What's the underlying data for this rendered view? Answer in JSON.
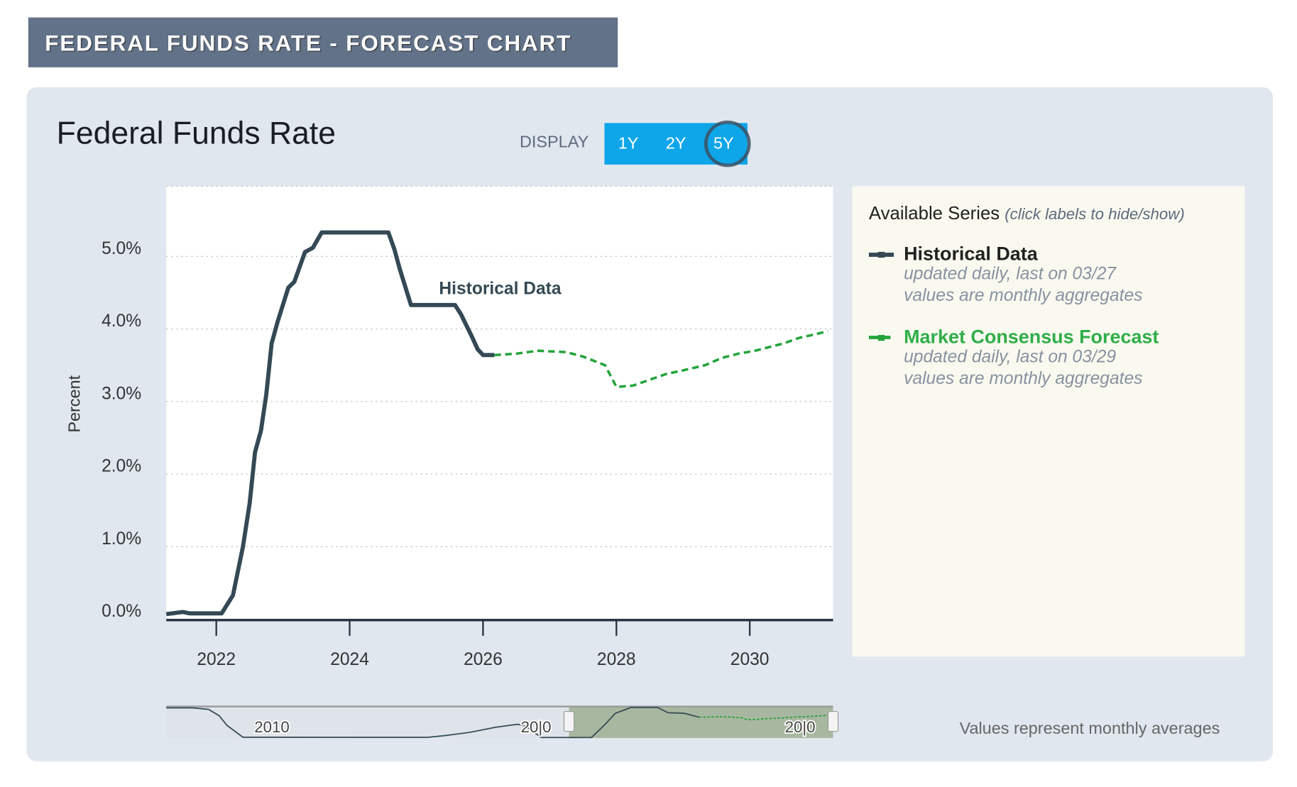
{
  "banner": "FEDERAL FUNDS RATE - FORECAST CHART",
  "title": "Federal Funds Rate",
  "display": {
    "label": "DISPLAY",
    "options": [
      "1Y",
      "2Y",
      "5Y"
    ],
    "selected": "5Y"
  },
  "legend": {
    "heading": "Available Series",
    "hint": "(click labels to hide/show)",
    "items": [
      {
        "name": "Historical Data",
        "color": "#344955",
        "sub1": "updated daily, last on 03/27",
        "sub2": "values are monthly aggregates"
      },
      {
        "name": "Market Consensus Forecast",
        "color": "#22a33a",
        "sub1": "updated daily, last on 03/29",
        "sub2": "values are monthly aggregates"
      }
    ]
  },
  "footnote": "Values represent monthly averages",
  "chart_data": {
    "type": "line",
    "title": "Federal Funds Rate",
    "ylabel": "Percent",
    "xlabel": "",
    "xlim": [
      2021.25,
      2031.25
    ],
    "ylim": [
      0,
      5.9
    ],
    "yticks": [
      "0.0%",
      "1.0%",
      "2.0%",
      "3.0%",
      "4.0%",
      "5.0%"
    ],
    "ytick_values": [
      0,
      1,
      2,
      3,
      4,
      5
    ],
    "xticks": [
      "2022",
      "2024",
      "2026",
      "2028",
      "2030"
    ],
    "xtick_values": [
      2022,
      2024,
      2026,
      2028,
      2030
    ],
    "grid": true,
    "annotation": "Historical Data",
    "series": [
      {
        "name": "Historical Data",
        "style": "solid",
        "color": "#344955",
        "x": [
          2021.25,
          2021.5,
          2021.6,
          2022.0,
          2022.08,
          2022.25,
          2022.4,
          2022.5,
          2022.58,
          2022.67,
          2022.75,
          2022.83,
          2022.92,
          2023.08,
          2023.17,
          2023.33,
          2023.45,
          2023.58,
          2024.58,
          2024.67,
          2024.75,
          2024.92,
          2025.58,
          2025.67,
          2025.83,
          2025.92,
          2026.0,
          2026.17
        ],
        "y": [
          0.07,
          0.1,
          0.08,
          0.08,
          0.08,
          0.33,
          1.0,
          1.6,
          2.3,
          2.6,
          3.1,
          3.8,
          4.1,
          4.57,
          4.65,
          5.06,
          5.12,
          5.33,
          5.33,
          5.1,
          4.83,
          4.33,
          4.33,
          4.2,
          3.9,
          3.72,
          3.64,
          3.64
        ]
      },
      {
        "name": "Market Consensus Forecast",
        "style": "dashed",
        "color": "#22a33a",
        "x": [
          2026.17,
          2026.5,
          2026.83,
          2027.25,
          2027.5,
          2027.83,
          2028.0,
          2028.25,
          2028.5,
          2028.75,
          2029.0,
          2029.33,
          2029.58,
          2029.83,
          2030.08,
          2030.5,
          2030.75,
          2031.0,
          2031.17
        ],
        "y": [
          3.64,
          3.66,
          3.7,
          3.68,
          3.62,
          3.5,
          3.2,
          3.22,
          3.3,
          3.38,
          3.43,
          3.5,
          3.6,
          3.66,
          3.7,
          3.8,
          3.88,
          3.93,
          3.97
        ]
      }
    ],
    "navigator": {
      "labels": [
        "2010",
        "20|0",
        "20|0"
      ],
      "label_years": [
        2010,
        2020,
        2030
      ],
      "xlim": [
        2006.0,
        2031.25
      ],
      "selection": [
        2021.25,
        2031.25
      ],
      "x": [
        2006.0,
        2007.0,
        2007.6,
        2008.0,
        2008.3,
        2008.9,
        2015.9,
        2016.5,
        2017.5,
        2018.5,
        2019.3,
        2019.6,
        2020.2,
        2022.1,
        2022.6,
        2023.0,
        2023.6,
        2024.6,
        2025.0,
        2025.6,
        2026.17
      ],
      "y": [
        5.25,
        5.25,
        5.0,
        3.9,
        2.2,
        0.15,
        0.12,
        0.4,
        1.0,
        1.9,
        2.4,
        2.1,
        0.1,
        0.1,
        2.3,
        4.3,
        5.33,
        5.33,
        4.4,
        4.33,
        3.64
      ]
    }
  }
}
